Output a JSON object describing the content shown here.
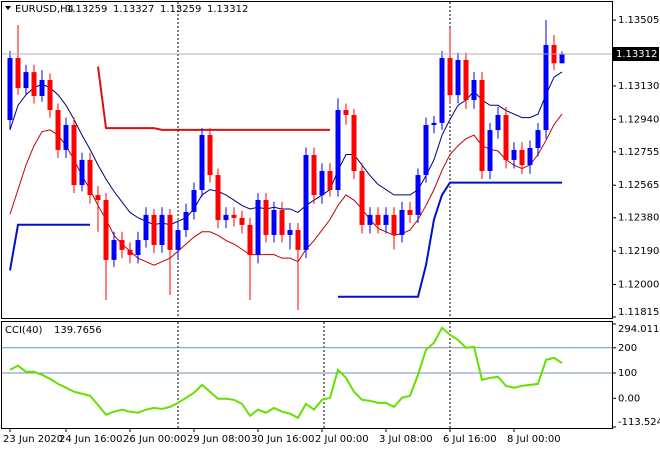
{
  "chart_data": [
    {
      "type": "candlestick",
      "title": "EURUSD,H4",
      "categories": [
        "23 Jun 2020",
        null,
        null,
        null,
        null,
        null,
        null,
        "24 Jun 16:00",
        null,
        null,
        null,
        null,
        null,
        null,
        null,
        "26 Jun 00:00",
        null,
        null,
        null,
        null,
        null,
        null,
        null,
        "29 Jun 08:00",
        null,
        null,
        null,
        null,
        null,
        null,
        null,
        "30 Jun 16:00",
        null,
        null,
        null,
        null,
        null,
        null,
        null,
        "2 Jul 00:00",
        null,
        null,
        null,
        null,
        null,
        null,
        null,
        "3 Jul 08:00",
        null,
        null,
        null,
        null,
        null,
        null,
        null,
        "6 Jul 16:00",
        null,
        null,
        null,
        null,
        null,
        null,
        null,
        "8 Jul 00:00",
        null,
        null,
        null,
        null,
        null,
        null
      ],
      "open": [
        1.12936,
        1.13289,
        1.13118,
        1.13209,
        1.13073,
        1.13164,
        1.12993,
        1.12766,
        1.12908,
        1.12566,
        1.12709,
        1.12509,
        1.12481,
        1.1214,
        1.12253,
        1.12197,
        1.12168,
        1.12253,
        1.12396,
        1.12225,
        1.12396,
        1.12197,
        1.1231,
        1.12413,
        1.12538,
        1.12851,
        1.12623,
        1.12367,
        1.12396,
        1.12379,
        1.12339,
        1.12168,
        1.12481,
        1.12282,
        1.12424,
        1.12282,
        1.1231,
        1.12197,
        1.12737,
        1.12509,
        1.12646,
        1.12538,
        1.12993,
        1.12965,
        1.12646,
        1.12339,
        1.12396,
        1.12339,
        1.12396,
        1.12282,
        1.12424,
        1.12396,
        1.12623,
        1.12908,
        1.1292,
        1.13289,
        1.13078,
        1.13278,
        1.1305,
        1.13164,
        1.12646,
        1.12879,
        1.12965,
        1.12709,
        1.12766,
        1.1268,
        1.12777,
        1.12879,
        1.13363,
        1.13259
      ],
      "high": [
        1.1333,
        1.13477,
        1.1325,
        1.1325,
        1.1322,
        1.132,
        1.1303,
        1.1295,
        1.1295,
        1.1275,
        1.1275,
        1.1256,
        1.1252,
        1.123,
        1.123,
        1.1224,
        1.123,
        1.1244,
        1.1243,
        1.1244,
        1.1243,
        1.1235,
        1.1246,
        1.1258,
        1.1289,
        1.1289,
        1.1266,
        1.1244,
        1.1244,
        1.1242,
        1.1238,
        1.1252,
        1.1252,
        1.1247,
        1.1247,
        1.1235,
        1.1235,
        1.1278,
        1.1278,
        1.1269,
        1.1269,
        1.1306,
        1.1303,
        1.13,
        1.1269,
        1.1244,
        1.1244,
        1.1244,
        1.1244,
        1.1247,
        1.1247,
        1.1266,
        1.1295,
        1.1296,
        1.1333,
        1.1346,
        1.1332,
        1.1332,
        1.1321,
        1.1321,
        1.1292,
        1.1301,
        1.1301,
        1.1281,
        1.1281,
        1.1282,
        1.1292,
        1.13505,
        1.1342,
        1.13327
      ],
      "low": [
        1.1288,
        1.1308,
        1.1308,
        1.1303,
        1.1304,
        1.1295,
        1.1272,
        1.1272,
        1.1252,
        1.1253,
        1.1246,
        1.123,
        1.11912,
        1.121,
        1.1215,
        1.1212,
        1.1212,
        1.1221,
        1.1218,
        1.1218,
        1.1194,
        1.1215,
        1.1227,
        1.1237,
        1.125,
        1.1258,
        1.1232,
        1.1232,
        1.1233,
        1.1229,
        1.11912,
        1.1212,
        1.1224,
        1.1224,
        1.1224,
        1.122,
        1.11855,
        1.1215,
        1.1246,
        1.1246,
        1.125,
        1.125,
        1.1291,
        1.126,
        1.1229,
        1.1229,
        1.1229,
        1.1229,
        1.122,
        1.1224,
        1.1235,
        1.1235,
        1.1258,
        1.1286,
        1.1288,
        1.1303,
        1.1303,
        1.13,
        1.13,
        1.126,
        1.126,
        1.1283,
        1.1266,
        1.1266,
        1.1263,
        1.1263,
        1.1273,
        1.1283,
        1.1322,
        1.13259
      ],
      "close": [
        1.13289,
        1.13118,
        1.13209,
        1.13073,
        1.13164,
        1.12993,
        1.12766,
        1.12908,
        1.12566,
        1.12709,
        1.12509,
        1.12481,
        1.1214,
        1.12253,
        1.12197,
        1.12168,
        1.12253,
        1.12396,
        1.12225,
        1.12396,
        1.12197,
        1.1231,
        1.12413,
        1.12538,
        1.12851,
        1.12623,
        1.12367,
        1.12396,
        1.12379,
        1.12339,
        1.12168,
        1.12481,
        1.12282,
        1.12424,
        1.12282,
        1.1231,
        1.12197,
        1.12737,
        1.12509,
        1.12646,
        1.12538,
        1.12993,
        1.12965,
        1.12646,
        1.12339,
        1.12396,
        1.12339,
        1.12396,
        1.12282,
        1.12424,
        1.12396,
        1.12623,
        1.12908,
        1.1292,
        1.13289,
        1.13078,
        1.13278,
        1.1305,
        1.13164,
        1.12646,
        1.12879,
        1.12965,
        1.12709,
        1.12766,
        1.1268,
        1.12777,
        1.12879,
        1.13363,
        1.13259,
        1.13312
      ],
      "up_color": "#0000ff",
      "down_color": "#ff0000",
      "series": [
        {
          "color": "#00007a",
          "values": [
            1.1288,
            1.1302,
            1.1308,
            1.1312,
            1.1314,
            1.1312,
            1.1308,
            1.1302,
            1.1294,
            1.1285,
            1.1277,
            1.1268,
            1.126,
            1.1253,
            1.1247,
            1.1241,
            1.1238,
            1.1236,
            1.1234,
            1.1235,
            1.1234,
            1.1236,
            1.1238,
            1.1243,
            1.1251,
            1.1254,
            1.1253,
            1.1251,
            1.1248,
            1.1245,
            1.1243,
            1.1244,
            1.1243,
            1.1244,
            1.1243,
            1.1243,
            1.1241,
            1.1245,
            1.1248,
            1.1251,
            1.1254,
            1.1265,
            1.1274,
            1.1274,
            1.1268,
            1.1262,
            1.1257,
            1.1254,
            1.1251,
            1.1251,
            1.1251,
            1.1254,
            1.1262,
            1.1271,
            1.1285,
            1.1294,
            1.1302,
            1.1305,
            1.131,
            1.1305,
            1.1302,
            1.1302,
            1.1299,
            1.1297,
            1.1295,
            1.1295,
            1.1297,
            1.1308,
            1.1318,
            1.1321
          ]
        },
        {
          "color": "#c00000",
          "values": [
            1.124,
            1.1254,
            1.1268,
            1.1279,
            1.1287,
            1.1288,
            1.1285,
            1.1279,
            1.1271,
            1.1262,
            1.1254,
            1.1245,
            1.1237,
            1.1228,
            1.1223,
            1.1219,
            1.1215,
            1.1213,
            1.1211,
            1.1213,
            1.1215,
            1.1219,
            1.1223,
            1.1227,
            1.123,
            1.123,
            1.1228,
            1.1225,
            1.1223,
            1.122,
            1.1217,
            1.1217,
            1.1217,
            1.1217,
            1.1215,
            1.1215,
            1.1213,
            1.122,
            1.1225,
            1.1231,
            1.1237,
            1.1245,
            1.1251,
            1.1248,
            1.1243,
            1.1237,
            1.1232,
            1.123,
            1.1228,
            1.1229,
            1.1231,
            1.1237,
            1.1245,
            1.1254,
            1.1265,
            1.1274,
            1.1279,
            1.1283,
            1.1285,
            1.1279,
            1.1277,
            1.1276,
            1.1271,
            1.1268,
            1.1266,
            1.1268,
            1.1274,
            1.1282,
            1.1291,
            1.1297
          ]
        },
        {
          "color": "#0010d0",
          "width": 2,
          "values": [
            1.1208,
            1.1234,
            1.1234,
            1.1234,
            1.1234,
            1.1234,
            1.1234,
            1.1234,
            1.1234,
            1.1234,
            1.1234,
            null,
            null,
            null,
            null,
            null,
            null,
            null,
            null,
            null,
            null,
            null,
            null,
            null,
            null,
            null,
            null,
            null,
            null,
            null,
            null,
            null,
            null,
            null,
            null,
            null,
            null,
            null,
            null,
            null,
            null,
            1.1193,
            1.1193,
            1.1193,
            1.1193,
            1.1193,
            1.1193,
            1.1193,
            1.1193,
            1.1193,
            1.1193,
            1.1193,
            1.1211,
            1.1237,
            1.1251,
            1.1258,
            1.1258,
            1.1258,
            1.1258,
            1.1258,
            1.1258,
            1.1258,
            1.1258,
            1.1258,
            1.1258,
            1.1258,
            1.1258,
            1.1258,
            1.1258,
            1.1258
          ]
        },
        {
          "color": "#d81010",
          "width": 2,
          "values": [
            null,
            null,
            null,
            null,
            null,
            null,
            null,
            null,
            null,
            null,
            null,
            1.1324,
            1.1289,
            1.1289,
            1.1289,
            1.1289,
            1.1289,
            1.1289,
            1.1289,
            1.1288,
            1.1288,
            1.1288,
            1.1288,
            1.1288,
            1.1288,
            1.1288,
            1.1288,
            1.1288,
            1.1288,
            1.1288,
            1.1288,
            1.1288,
            1.1288,
            1.1288,
            1.1288,
            1.1288,
            1.1288,
            1.1288,
            1.1288,
            1.1288,
            1.1288,
            null,
            null,
            null,
            null,
            null,
            null,
            null,
            null,
            null,
            null,
            null,
            null,
            null,
            null,
            null,
            null,
            null,
            null,
            null,
            null,
            null,
            null,
            null,
            null,
            null,
            null,
            null,
            null,
            null
          ]
        }
      ],
      "ylim": [
        1.11815,
        1.13608
      ],
      "yticks": [
        1.13505,
        {
          "value": 1.1313,
          "label": "1.13130"
        },
        {
          "value": 1.1294,
          "label": "1.12940"
        },
        1.12755,
        1.12565,
        {
          "value": 1.1238,
          "label": "1.12380"
        },
        {
          "value": 1.1219,
          "label": "1.12190"
        },
        {
          "value": 1.12,
          "label": "1.12000"
        },
        1.11815
      ]
    },
    {
      "type": "line",
      "title": "CCI(40)",
      "color": "#66e000",
      "values": [
        113,
        129,
        105,
        105,
        93,
        77,
        57,
        42,
        26,
        18,
        10,
        -26,
        -65,
        -53,
        -45,
        -53,
        -57,
        -45,
        -38,
        -42,
        -34,
        -18,
        2,
        22,
        53,
        26,
        -2,
        -2,
        -6,
        -22,
        -69,
        -45,
        -57,
        -38,
        -53,
        -61,
        -77,
        -22,
        -45,
        -6,
        2,
        113,
        81,
        26,
        -6,
        -10,
        -18,
        -18,
        -34,
        2,
        10,
        93,
        192,
        220,
        279,
        251,
        231,
        200,
        204,
        73,
        81,
        85,
        49,
        42,
        49,
        53,
        57,
        152,
        160,
        139.7656
      ],
      "ylim": [
        -113.5241,
        294.0114
      ],
      "yticks": [
        294.0114,
        200,
        100,
        {
          "value": 0,
          "label": "0.00"
        },
        -113.5241
      ],
      "levels": [
        200,
        100
      ]
    }
  ]
}
